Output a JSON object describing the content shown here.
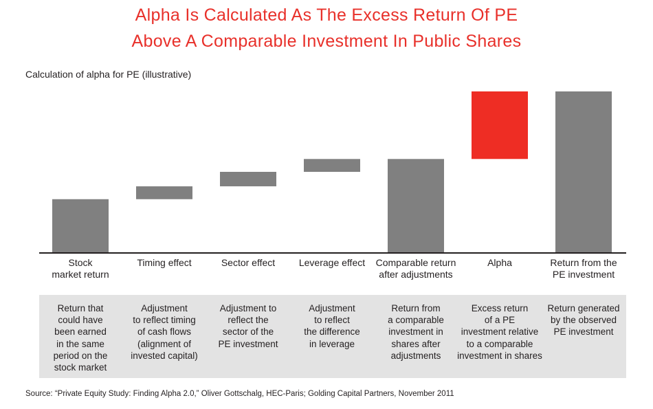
{
  "title": {
    "line1": "Alpha Is Calculated As The Excess Return Of PE",
    "line2": "Above A Comparable Investment In Public Shares"
  },
  "subtitle": "Calculation of alpha for PE (illustrative)",
  "colors": {
    "bar": "#808080",
    "alpha": "#ee2d24",
    "title": "#e8302a",
    "panel": "#e3e3e3",
    "axis": "#231f20"
  },
  "chart_data": {
    "type": "bar",
    "subtype": "waterfall",
    "title": "",
    "xlabel": "",
    "ylabel": "",
    "ylim": [
      0,
      100
    ],
    "grid": false,
    "legend": "none",
    "categories": [
      "Stock\nmarket return",
      "Timing effect",
      "Sector effect",
      "Leverage effect",
      "Comparable return\nafter adjustments",
      "Alpha",
      "Return from the\nPE investment"
    ],
    "bars": [
      {
        "kind": "total",
        "start": 0,
        "end": 33,
        "color": "gray"
      },
      {
        "kind": "delta",
        "start": 33,
        "end": 41,
        "color": "gray"
      },
      {
        "kind": "delta",
        "start": 41,
        "end": 50,
        "color": "gray"
      },
      {
        "kind": "delta",
        "start": 50,
        "end": 58,
        "color": "gray"
      },
      {
        "kind": "total",
        "start": 0,
        "end": 58,
        "color": "gray"
      },
      {
        "kind": "delta",
        "start": 58,
        "end": 100,
        "color": "red"
      },
      {
        "kind": "total",
        "start": 0,
        "end": 100,
        "color": "gray"
      }
    ],
    "descriptions": [
      "Return that\ncould have\nbeen earned\nin the same\nperiod on the\nstock market",
      "Adjustment\nto reflect timing\nof cash flows\n(alignment of\ninvested capital)",
      "Adjustment to\nreflect the\nsector of the\nPE investment",
      "Adjustment\nto reflect\nthe difference\nin leverage",
      "Return from\na comparable\ninvestment in\nshares after\nadjustments",
      "Excess return\nof a PE\ninvestment relative\nto a comparable\ninvestment in shares",
      "Return generated\nby the observed\nPE investment"
    ]
  },
  "source": "Source: “Private Equity Study: Finding Alpha 2.0,” Oliver Gottschalg, HEC-Paris; Golding Capital Partners, November 2011"
}
